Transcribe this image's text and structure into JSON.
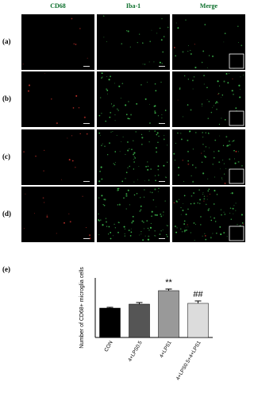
{
  "figure": {
    "column_headers": [
      "CD68",
      "Iba-1",
      "Merge"
    ],
    "row_labels": [
      "(a)",
      "(b)",
      "(c)",
      "(d)"
    ]
  },
  "chart_data": {
    "type": "bar",
    "panel_label": "(e)",
    "y_label": "Number of CD68+ microglia cells",
    "categories": [
      "CON",
      "4+LPS0.5",
      "4+LPS1",
      "4+LPS0.5+4+LPS1"
    ],
    "values": [
      14.8,
      16.8,
      23.6,
      17.2
    ],
    "errors": [
      0.4,
      0.8,
      0.8,
      1.2
    ],
    "colors": [
      "#000000",
      "#555555",
      "#999999",
      "#dcdcdc"
    ],
    "annotations": [
      null,
      null,
      "**",
      "##"
    ],
    "ylim": [
      0,
      30
    ]
  }
}
